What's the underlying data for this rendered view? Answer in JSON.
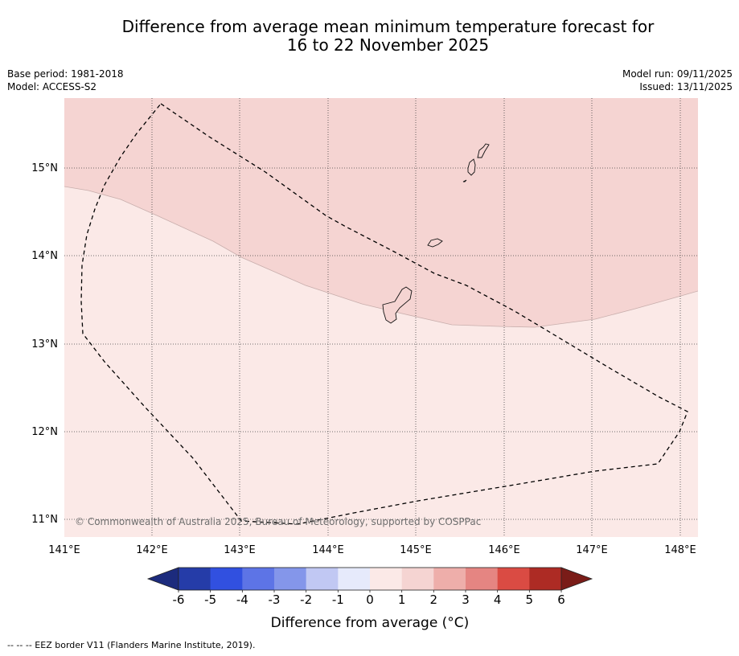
{
  "title": {
    "line1": "Difference from average mean minimum temperature forecast for",
    "line2": "16 to 22 November 2025"
  },
  "meta": {
    "base_period": "Base period: 1981-2018",
    "model": "Model: ACCESS-S2",
    "model_run": "Model run: 09/11/2025",
    "issued": "Issued: 13/11/2025"
  },
  "map": {
    "lon_labels": [
      "141°E",
      "142°E",
      "143°E",
      "144°E",
      "145°E",
      "146°E",
      "147°E",
      "148°E"
    ],
    "lat_labels": [
      "15°N",
      "14°N",
      "13°N",
      "12°N",
      "11°N"
    ],
    "copyright": "© Commonwealth of Australia 2025, Bureau of Meteorology, supported by COSPPac",
    "regions": [
      {
        "name": "anomaly 1 to 2 °C",
        "color": "#f5d4d2"
      },
      {
        "name": "anomaly 0 to 1 °C",
        "color": "#fbe9e7"
      }
    ]
  },
  "colorbar": {
    "labels": [
      "-6",
      "-5",
      "-4",
      "-3",
      "-2",
      "-1",
      "0",
      "1",
      "2",
      "3",
      "4",
      "5",
      "6"
    ],
    "colors": [
      "#253ca8",
      "#3150e0",
      "#5d74e6",
      "#8496ea",
      "#c1c8f3",
      "#e6eafb",
      "#fbe9e7",
      "#f5d4d2",
      "#eeaeaa",
      "#e58582",
      "#da4b43",
      "#ad2b24"
    ],
    "under_color": "#1c2b7d",
    "over_color": "#7a1c18",
    "label": "Difference from average (°C)"
  },
  "footnote": "--  --  -- EEZ border V11 (Flanders Marine Institute, 2019)."
}
